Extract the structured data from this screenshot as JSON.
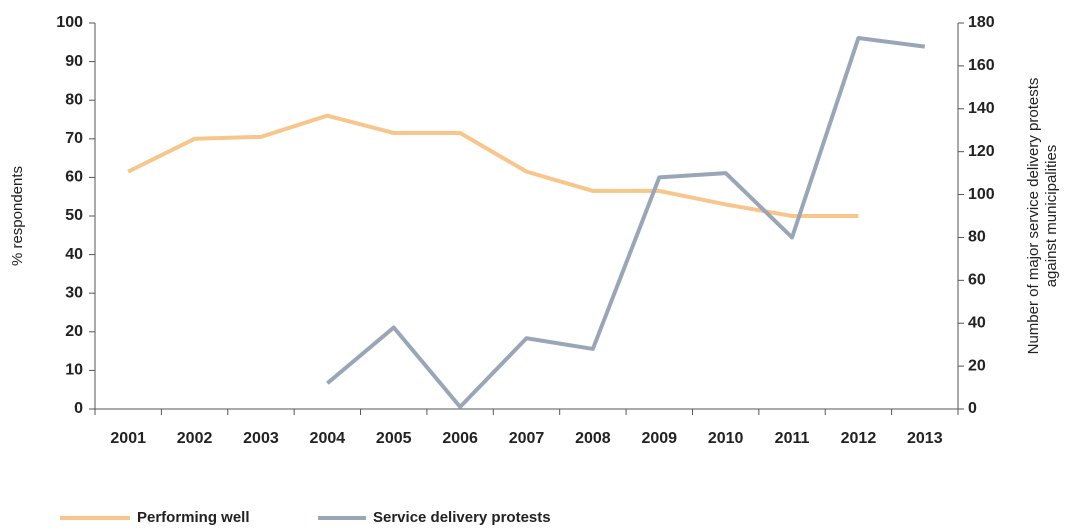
{
  "chart_data": {
    "type": "line",
    "categories": [
      "2001",
      "2002",
      "2003",
      "2004",
      "2005",
      "2006",
      "2007",
      "2008",
      "2009",
      "2010",
      "2011",
      "2012",
      "2013"
    ],
    "y_label": "% respondents",
    "y2_label": [
      "Number of major service delivery protests",
      "against municipalities"
    ],
    "ylim": [
      0,
      100
    ],
    "yticks": [
      0,
      10,
      20,
      30,
      40,
      50,
      60,
      70,
      80,
      90,
      100
    ],
    "y2lim": [
      0,
      180
    ],
    "y2ticks": [
      0,
      20,
      40,
      60,
      80,
      100,
      120,
      140,
      160,
      180
    ],
    "series": [
      {
        "name": "Performing well",
        "color": "#f8c58a",
        "values": [
          61.5,
          70,
          70.5,
          76,
          71.5,
          71.5,
          61.5,
          56.5,
          56.5,
          53,
          50,
          50,
          null
        ]
      },
      {
        "name": "Service delivery protests",
        "color": "#98a6b8",
        "axis": "y2",
        "values": [
          null,
          null,
          null,
          12,
          38,
          1,
          33,
          28,
          108,
          110,
          80,
          173,
          169
        ]
      }
    ],
    "legend": "bottom-left"
  }
}
